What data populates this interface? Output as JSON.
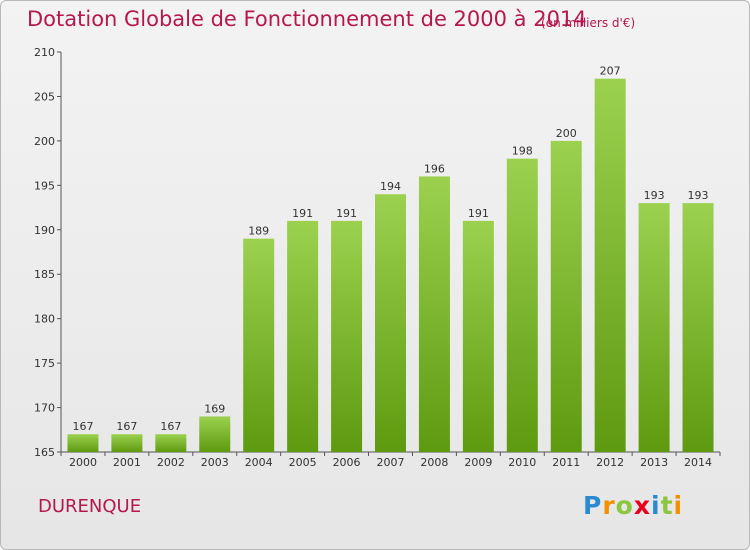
{
  "title": "Dotation Globale de Fonctionnement de 2000 à 2014",
  "subtitle": "(en milliers d'€)",
  "commune": "DURENQUE",
  "logo": {
    "text": "Proxiti",
    "letters": [
      "P",
      "r",
      "o",
      "x",
      "i",
      "t",
      "i"
    ],
    "colors": [
      "#2a8ad2",
      "#f29100",
      "#8cc63f",
      "#e8001c",
      "#2a8ad2",
      "#8cc63f",
      "#f29100"
    ]
  },
  "colors": {
    "bar_top": "#9bd14f",
    "bar_bottom": "#5e9a10",
    "title": "#b5174f"
  },
  "chart_data": {
    "type": "bar",
    "categories": [
      "2000",
      "2001",
      "2002",
      "2003",
      "2004",
      "2005",
      "2006",
      "2007",
      "2008",
      "2009",
      "2010",
      "2011",
      "2012",
      "2013",
      "2014"
    ],
    "values": [
      167,
      167,
      167,
      169,
      189,
      191,
      191,
      194,
      196,
      191,
      198,
      200,
      207,
      193,
      193
    ],
    "title": "Dotation Globale de Fonctionnement de 2000 à 2014",
    "xlabel": "",
    "ylabel": "",
    "ylim": [
      165,
      210
    ],
    "yticks": [
      165,
      170,
      175,
      180,
      185,
      190,
      195,
      200,
      205,
      210
    ],
    "grid": false,
    "legend": "none"
  }
}
